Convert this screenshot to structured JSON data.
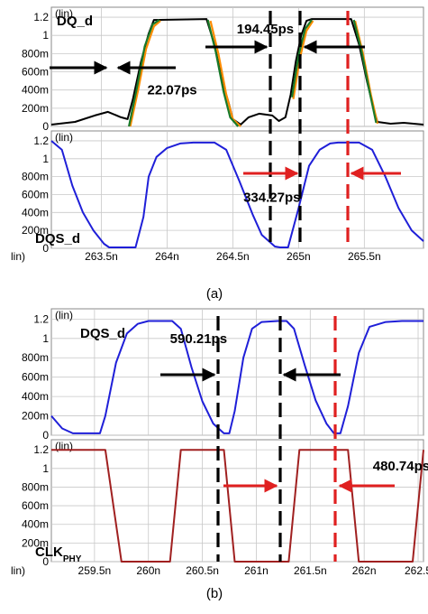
{
  "chart_data": [
    {
      "id": "a",
      "type": "line",
      "caption": "(a)",
      "xlabel": "lin)",
      "xticks": [
        "263.5n",
        "264n",
        "264.5n",
        "265n",
        "265.5n"
      ],
      "xtick_values": [
        263.5,
        264.0,
        264.5,
        265.0,
        265.5
      ],
      "xlim": [
        263.12,
        265.95
      ],
      "grid": true,
      "panels": [
        {
          "id": "a-top",
          "label": "DQ_d",
          "axis_unit": "(lin)",
          "yticks": [
            "0",
            "200m",
            "400m",
            "600m",
            "800m",
            "1",
            "1.2"
          ],
          "ylim": [
            0,
            1.25
          ],
          "series": [
            {
              "style": "black-noisy",
              "color": "#000000",
              "x": [
                263.12,
                263.3,
                263.45,
                263.55,
                263.65,
                263.7,
                263.74,
                263.8,
                263.86,
                263.9,
                264.3,
                264.36,
                264.42,
                264.47,
                264.5,
                264.56,
                264.62,
                264.7,
                264.8,
                264.85,
                264.9,
                264.94,
                264.98,
                265.02,
                265.06,
                265.1,
                265.4,
                265.46,
                265.52,
                265.57,
                265.6,
                265.7,
                265.8,
                265.95
              ],
              "y": [
                0.02,
                0.05,
                0.12,
                0.16,
                0.1,
                0.08,
                0.3,
                0.7,
                1.02,
                1.17,
                1.18,
                0.9,
                0.5,
                0.25,
                0.08,
                0.02,
                0.1,
                0.14,
                0.12,
                0.06,
                0.1,
                0.35,
                0.72,
                1.0,
                1.16,
                1.18,
                1.18,
                0.9,
                0.5,
                0.2,
                0.05,
                0.03,
                0.04,
                0.02
              ]
            },
            {
              "style": "edge",
              "color": "#ff8c00",
              "x": [
                263.72,
                263.78,
                263.84,
                263.9,
                263.95,
                264.33,
                264.39,
                264.45,
                264.5,
                264.56,
                264.96,
                265.01,
                265.06,
                265.11,
                265.43,
                265.49,
                265.55,
                265.6
              ],
              "y": [
                0.0,
                0.4,
                0.85,
                1.1,
                1.16,
                1.16,
                0.8,
                0.35,
                0.08,
                0.0,
                0.3,
                0.75,
                1.05,
                1.16,
                1.16,
                0.8,
                0.35,
                0.03
              ]
            },
            {
              "style": "edge",
              "color": "#1a7a2a",
              "x": [
                263.71,
                263.77,
                263.83,
                263.89,
                263.94,
                264.31,
                264.37,
                264.43,
                264.48,
                264.54,
                264.95,
                265.0,
                265.05,
                265.1,
                265.42,
                265.48,
                265.54,
                265.59
              ],
              "y": [
                0.0,
                0.42,
                0.88,
                1.12,
                1.17,
                1.17,
                0.82,
                0.38,
                0.1,
                0.0,
                0.32,
                0.78,
                1.07,
                1.17,
                1.17,
                0.82,
                0.38,
                0.04
              ]
            }
          ],
          "annotations": [
            {
              "text": "22.07ps",
              "color": "#000000",
              "x": 263.85,
              "y": 0.35
            },
            {
              "text": "194.45ps",
              "color": "#000000",
              "x": 264.53,
              "y": 1.02
            }
          ]
        },
        {
          "id": "a-bottom",
          "label": "DQS_d",
          "axis_unit": "(lin)",
          "yticks": [
            "0",
            "200m",
            "400m",
            "600m",
            "800m",
            "1",
            "1.2"
          ],
          "ylim": [
            0,
            1.25
          ],
          "series": [
            {
              "style": "blue",
              "color": "#1f1fd8",
              "x": [
                263.12,
                263.2,
                263.28,
                263.36,
                263.44,
                263.52,
                263.56,
                263.7,
                263.76,
                263.82,
                263.86,
                263.92,
                264.0,
                264.1,
                264.2,
                264.28,
                264.36,
                264.45,
                264.55,
                264.65,
                264.72,
                264.82,
                264.86,
                264.92,
                265.0,
                265.08,
                265.16,
                265.24,
                265.3,
                265.38,
                265.46,
                265.56,
                265.66,
                265.76,
                265.86,
                265.95
              ],
              "y": [
                1.2,
                1.1,
                0.7,
                0.4,
                0.2,
                0.05,
                0.01,
                0.01,
                0.01,
                0.35,
                0.8,
                1.02,
                1.12,
                1.17,
                1.18,
                1.18,
                1.18,
                1.1,
                0.75,
                0.38,
                0.15,
                0.02,
                0.01,
                0.01,
                0.45,
                0.92,
                1.1,
                1.17,
                1.18,
                1.18,
                1.18,
                1.1,
                0.8,
                0.45,
                0.2,
                0.08
              ]
            }
          ],
          "annotations": [
            {
              "text": "334.27ps",
              "color": "#e02020",
              "x": 264.58,
              "y": 0.52
            }
          ]
        }
      ]
    },
    {
      "id": "b",
      "type": "line",
      "caption": "(b)",
      "xlabel": "lin)",
      "xticks": [
        "259.5n",
        "260n",
        "260.5n",
        "261n",
        "261.5n",
        "262n",
        "262.5"
      ],
      "xtick_values": [
        259.5,
        260.0,
        260.5,
        261.0,
        261.5,
        262.0,
        262.5
      ],
      "xlim": [
        259.1,
        262.55
      ],
      "grid": true,
      "panels": [
        {
          "id": "b-top",
          "label": "DQS_d",
          "axis_unit": "(lin)",
          "yticks": [
            "0",
            "200m",
            "400m",
            "600m",
            "800m",
            "1",
            "1.2"
          ],
          "ylim": [
            0,
            1.25
          ],
          "series": [
            {
              "style": "blue",
              "color": "#1f1fd8",
              "x": [
                259.1,
                259.2,
                259.3,
                259.45,
                259.55,
                259.6,
                259.7,
                259.8,
                259.9,
                260.0,
                260.1,
                260.22,
                260.3,
                260.4,
                260.5,
                260.6,
                260.7,
                260.75,
                260.8,
                260.88,
                260.96,
                261.05,
                261.2,
                261.28,
                261.35,
                261.45,
                261.55,
                261.65,
                261.72,
                261.78,
                261.85,
                261.95,
                262.05,
                262.2,
                262.35,
                262.45,
                262.55
              ],
              "y": [
                0.2,
                0.07,
                0.02,
                0.02,
                0.02,
                0.2,
                0.75,
                1.05,
                1.15,
                1.18,
                1.18,
                1.18,
                1.1,
                0.7,
                0.35,
                0.12,
                0.02,
                0.02,
                0.25,
                0.8,
                1.1,
                1.17,
                1.18,
                1.18,
                1.1,
                0.72,
                0.36,
                0.12,
                0.02,
                0.02,
                0.3,
                0.85,
                1.12,
                1.17,
                1.18,
                1.18,
                1.18
              ]
            }
          ],
          "annotations": [
            {
              "text": "590.21ps",
              "color": "#000000",
              "x": 260.2,
              "y": 0.95
            }
          ]
        },
        {
          "id": "b-bottom",
          "label": "CLK",
          "label_sub": "PHY",
          "axis_unit": "(lin)",
          "yticks": [
            "0",
            "200m",
            "400m",
            "600m",
            "800m",
            "1",
            "1.2"
          ],
          "ylim": [
            0,
            1.25
          ],
          "series": [
            {
              "style": "clock",
              "color": "#a02020",
              "x": [
                259.1,
                259.6,
                259.75,
                260.2,
                260.3,
                260.7,
                260.8,
                261.3,
                261.4,
                261.85,
                261.95,
                262.45,
                262.55
              ],
              "y": [
                1.2,
                1.2,
                0.0,
                0.0,
                1.2,
                1.2,
                0.0,
                0.0,
                1.2,
                1.2,
                0.0,
                0.0,
                1.2
              ]
            }
          ],
          "annotations": [
            {
              "text": "480.74ps",
              "color": "#e02020",
              "x": 262.08,
              "y": 0.98
            }
          ]
        }
      ]
    }
  ]
}
